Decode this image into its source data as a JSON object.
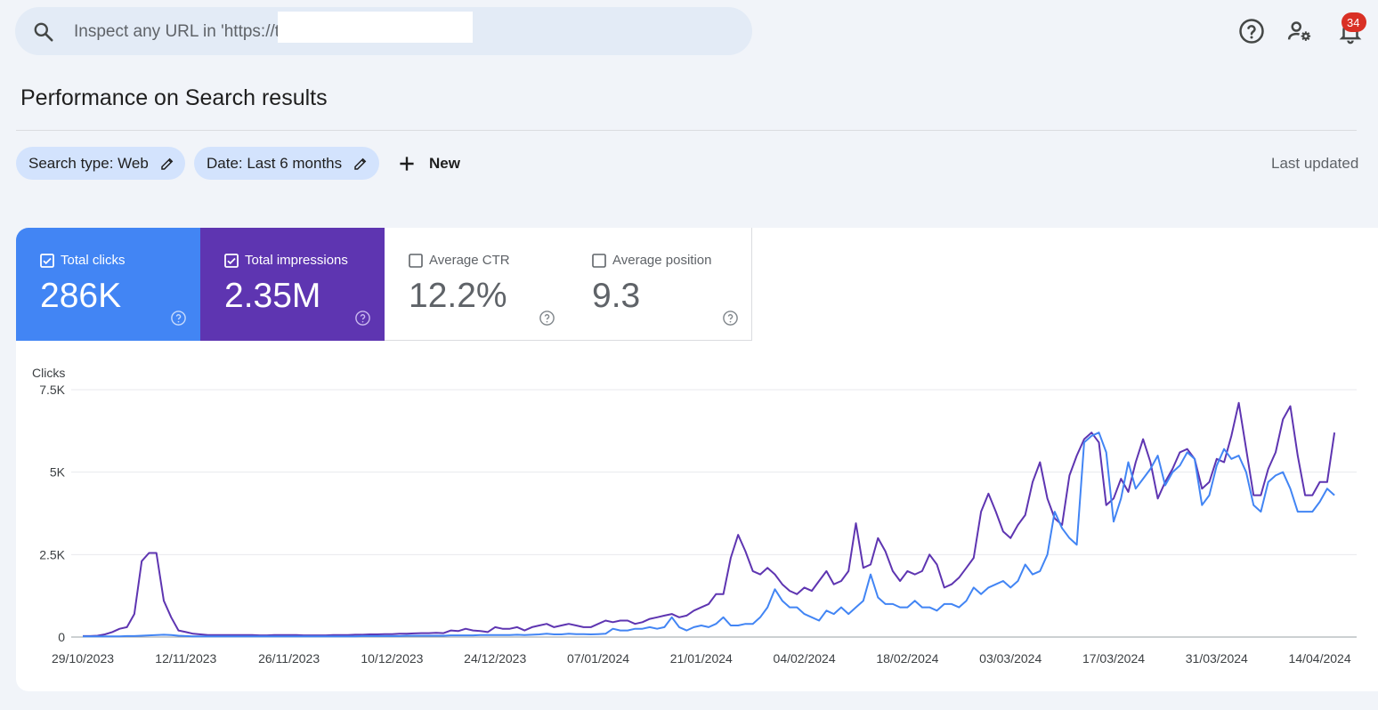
{
  "topbar": {
    "search_placeholder": "Inspect any URL in 'https://t",
    "icons": [
      "search-icon",
      "help-icon",
      "manage-users-icon",
      "bell-icon"
    ],
    "notification_count": "34"
  },
  "page": {
    "title": "Performance on Search results"
  },
  "filters": {
    "chips": [
      {
        "label": "Search type: Web"
      },
      {
        "label": "Date: Last 6 months"
      }
    ],
    "new_label": "New",
    "last_updated": "Last updated"
  },
  "metrics": [
    {
      "label": "Total clicks",
      "value": "286K",
      "checked": true,
      "color": "#4285f4"
    },
    {
      "label": "Total impressions",
      "value": "2.35M",
      "checked": true,
      "color": "#5e35b1"
    },
    {
      "label": "Average CTR",
      "value": "12.2%",
      "checked": false
    },
    {
      "label": "Average position",
      "value": "9.3",
      "checked": false
    }
  ],
  "chart_data": {
    "type": "line",
    "ylabel": "Clicks",
    "ylim": [
      0,
      7500
    ],
    "yticks": [
      "0",
      "2.5K",
      "5K",
      "7.5K"
    ],
    "ytick_values": [
      0,
      2500,
      5000,
      7500
    ],
    "xticks": [
      "29/10/2023",
      "12/11/2023",
      "26/11/2023",
      "10/12/2023",
      "24/12/2023",
      "07/01/2024",
      "21/01/2024",
      "04/02/2024",
      "18/02/2024",
      "03/03/2024",
      "17/03/2024",
      "31/03/2024",
      "14/04/2024"
    ],
    "grid": true,
    "series": [
      {
        "color": "#5e35b1",
        "values": [
          30,
          30,
          40,
          80,
          150,
          250,
          300,
          700,
          2300,
          2550,
          2550,
          1100,
          600,
          200,
          150,
          100,
          80,
          60,
          60,
          60,
          60,
          60,
          60,
          60,
          50,
          50,
          60,
          60,
          60,
          60,
          50,
          50,
          50,
          50,
          60,
          60,
          60,
          70,
          70,
          80,
          80,
          90,
          90,
          100,
          100,
          110,
          120,
          120,
          130,
          120,
          200,
          180,
          250,
          200,
          180,
          150,
          300,
          250,
          250,
          300,
          200,
          300,
          350,
          400,
          300,
          350,
          400,
          350,
          300,
          300,
          400,
          500,
          450,
          500,
          500,
          400,
          450,
          550,
          600,
          650,
          700,
          600,
          650,
          800,
          900,
          1000,
          1300,
          1300,
          2400,
          3100,
          2600,
          2000,
          1900,
          2100,
          1900,
          1600,
          1400,
          1300,
          1500,
          1400,
          1700,
          2000,
          1600,
          1700,
          2000,
          3450,
          2100,
          2200,
          3000,
          2600,
          2000,
          1700,
          2000,
          1900,
          2000,
          2500,
          2200,
          1500,
          1600,
          1800,
          2100,
          2400,
          3800,
          4350,
          3800,
          3200,
          3000,
          3400,
          3700,
          4700,
          5300,
          4200,
          3600,
          3400,
          4900,
          5500,
          6000,
          6200,
          5900,
          4000,
          4200,
          4800,
          4400,
          5300,
          6000,
          5300,
          4200,
          4700,
          5100,
          5600,
          5700,
          5400,
          4500,
          4700,
          5400,
          5300,
          6100,
          7100,
          5700,
          4300,
          4300,
          5100,
          5600,
          6600,
          7000,
          5500,
          4300,
          4300,
          4700,
          4700,
          6200
        ]
      },
      {
        "color": "#4285f4",
        "values": [
          20,
          20,
          20,
          20,
          20,
          20,
          30,
          30,
          40,
          50,
          60,
          70,
          60,
          40,
          30,
          20,
          20,
          20,
          20,
          20,
          20,
          20,
          20,
          20,
          20,
          20,
          20,
          20,
          20,
          20,
          20,
          20,
          20,
          20,
          20,
          20,
          20,
          20,
          30,
          30,
          30,
          30,
          30,
          30,
          40,
          40,
          40,
          40,
          40,
          40,
          50,
          50,
          50,
          50,
          60,
          60,
          60,
          60,
          60,
          70,
          60,
          70,
          80,
          100,
          80,
          80,
          100,
          90,
          90,
          80,
          90,
          100,
          250,
          200,
          200,
          250,
          250,
          300,
          250,
          300,
          600,
          300,
          200,
          300,
          350,
          300,
          400,
          600,
          350,
          350,
          400,
          400,
          600,
          900,
          1450,
          1100,
          900,
          900,
          700,
          600,
          500,
          800,
          700,
          900,
          700,
          900,
          1100,
          1900,
          1200,
          1000,
          1000,
          900,
          900,
          1100,
          900,
          900,
          800,
          1000,
          1000,
          900,
          1100,
          1500,
          1300,
          1500,
          1600,
          1700,
          1500,
          1700,
          2200,
          1900,
          2000,
          2500,
          3800,
          3300,
          3000,
          2800,
          5900,
          6100,
          6200,
          5600,
          3500,
          4200,
          5300,
          4500,
          4800,
          5100,
          5500,
          4600,
          5000,
          5200,
          5600,
          5400,
          4000,
          4300,
          5200,
          5700,
          5400,
          5500,
          5000,
          4000,
          3800,
          4700,
          4900,
          5000,
          4500,
          3800,
          3800,
          3800,
          4100,
          4500,
          4300
        ]
      }
    ]
  }
}
